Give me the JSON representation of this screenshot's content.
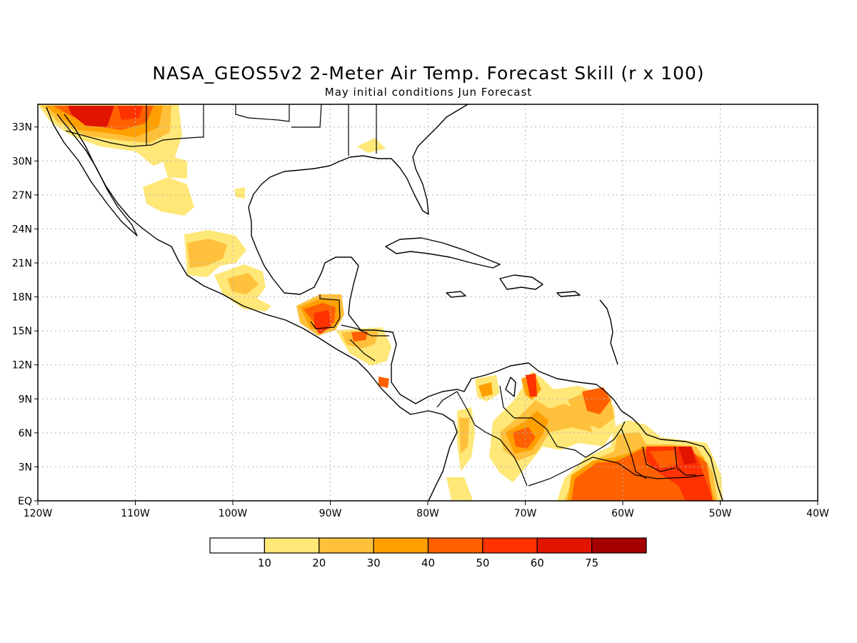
{
  "title": "NASA_GEOS5v2 2-Meter Air Temp. Forecast Skill (r x 100)",
  "subtitle": "May initial conditions  Jun Forecast",
  "map": {
    "lon_range": [
      -120,
      -40
    ],
    "lat_range": [
      0,
      35
    ],
    "lon_labels": [
      "120W",
      "110W",
      "100W",
      "90W",
      "80W",
      "70W",
      "60W",
      "50W",
      "40W"
    ],
    "lat_labels": [
      "EQ",
      "3N",
      "6N",
      "9N",
      "12N",
      "15N",
      "18N",
      "21N",
      "24N",
      "27N",
      "30N",
      "33N"
    ],
    "gridlines": true
  },
  "colorbar": {
    "colors": [
      "#ffffff",
      "#ffe778",
      "#ffc03c",
      "#ffa000",
      "#ff6000",
      "#ff3200",
      "#e11400",
      "#a50000"
    ],
    "labels": [
      "10",
      "20",
      "30",
      "40",
      "50",
      "60",
      "75"
    ]
  }
}
